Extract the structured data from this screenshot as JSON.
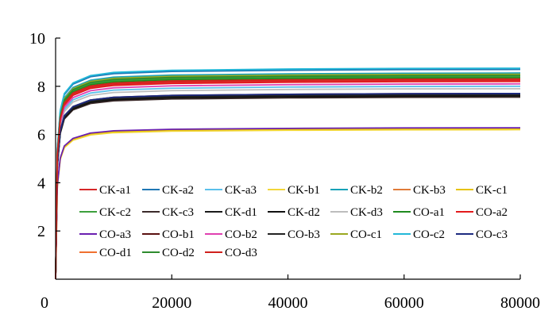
{
  "chart_data": {
    "type": "line",
    "xlim": [
      0,
      80000
    ],
    "ylim": [
      0,
      10
    ],
    "x_ticks": [
      0,
      20000,
      40000,
      60000,
      80000
    ],
    "y_ticks": [
      2,
      4,
      6,
      8,
      10
    ],
    "x_tick_labels": [
      "0",
      "20000",
      "40000",
      "60000",
      "80000"
    ],
    "y_tick_labels": [
      "2",
      "4",
      "6",
      "8",
      "10"
    ],
    "grid": false,
    "legend_position": "center-bottom",
    "x": [
      0,
      300,
      800,
      1500,
      3000,
      6000,
      10000,
      20000,
      40000,
      60000,
      80000
    ],
    "series": [
      {
        "name": "CK-a1",
        "color": "#D62728",
        "final": 8.25
      },
      {
        "name": "CK-a2",
        "color": "#1F77B4",
        "final": 8.7
      },
      {
        "name": "CK-a3",
        "color": "#5BC0EB",
        "final": 8.0
      },
      {
        "name": "CK-b1",
        "color": "#F2D63A",
        "final": 6.2
      },
      {
        "name": "CK-b2",
        "color": "#17A2B8",
        "final": 8.55
      },
      {
        "name": "CK-b3",
        "color": "#E07B39",
        "final": 8.45
      },
      {
        "name": "CK-c1",
        "color": "#E6C200",
        "final": 6.25
      },
      {
        "name": "CK-c2",
        "color": "#3CA03C",
        "final": 8.4
      },
      {
        "name": "CK-c3",
        "color": "#3B2A2A",
        "final": 7.55
      },
      {
        "name": "CK-d1",
        "color": "#1A1A1A",
        "final": 7.65
      },
      {
        "name": "CK-d2",
        "color": "#101010",
        "final": 7.6
      },
      {
        "name": "CK-d3",
        "color": "#BDBDBD",
        "final": 7.9
      },
      {
        "name": "CO-a1",
        "color": "#1E8A1E",
        "final": 8.35
      },
      {
        "name": "CO-a2",
        "color": "#E31A1C",
        "final": 8.2
      },
      {
        "name": "CO-a3",
        "color": "#6A1FB0",
        "final": 6.28
      },
      {
        "name": "CO-b1",
        "color": "#5A1010",
        "final": 7.7
      },
      {
        "name": "CO-b2",
        "color": "#E040B0",
        "final": 8.1
      },
      {
        "name": "CO-b3",
        "color": "#222222",
        "final": 7.65
      },
      {
        "name": "CO-c1",
        "color": "#9AA820",
        "final": 8.5
      },
      {
        "name": "CO-c2",
        "color": "#22B8D8",
        "final": 8.75
      },
      {
        "name": "CO-c3",
        "color": "#1C2A80",
        "final": 7.7
      },
      {
        "name": "CO-d1",
        "color": "#F07030",
        "final": 8.3
      },
      {
        "name": "CO-d2",
        "color": "#2E8B2E",
        "final": 8.45
      },
      {
        "name": "CO-d3",
        "color": "#D0201C",
        "final": 8.3
      }
    ]
  }
}
